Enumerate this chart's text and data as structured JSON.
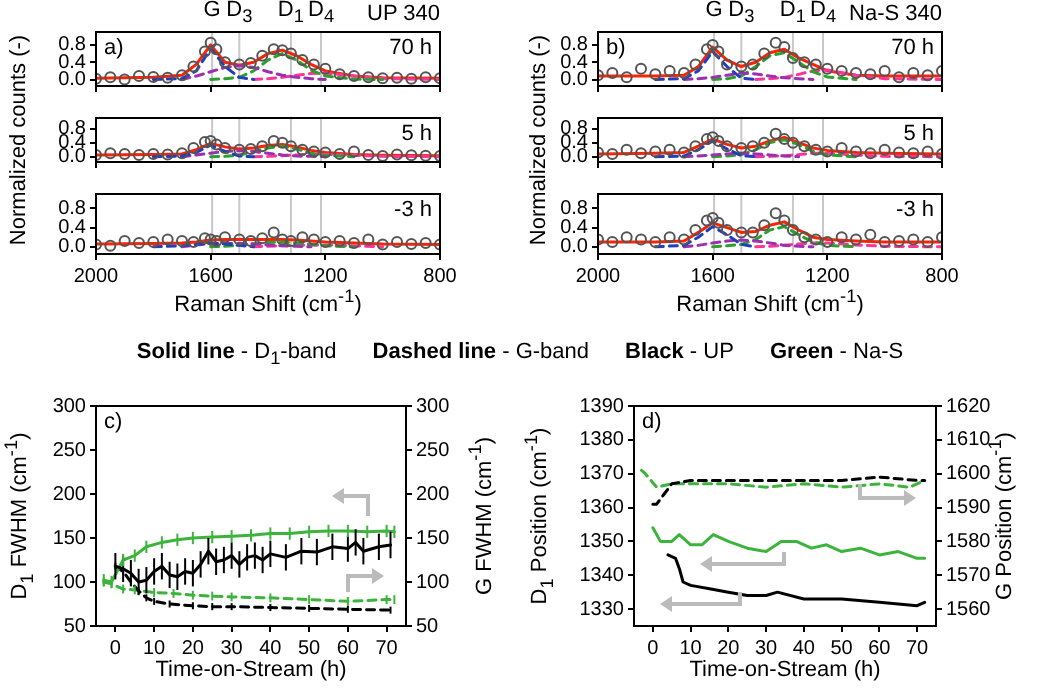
{
  "chart_data": [
    {
      "type": "line",
      "title": "UP 340",
      "annotations": [
        "a)",
        "70 h"
      ],
      "x": [
        2000,
        1800,
        1700,
        1650,
        1600,
        1550,
        1500,
        1450,
        1400,
        1350,
        1300,
        1250,
        1200,
        1100,
        1000,
        800
      ],
      "xlim": [
        2000,
        800
      ],
      "xticks": [
        2000,
        1600,
        1200,
        800
      ],
      "ylim": [
        -0.15,
        1.1
      ],
      "yticks": [
        {
          "value": 0,
          "label": "0.0"
        },
        {
          "value": 0.4,
          "label": "0.4"
        },
        {
          "value": 0.8,
          "label": "0.8"
        }
      ],
      "tick_labels": "y",
      "ref_lines": [
        {
          "axis": "x",
          "value": 1595,
          "label": "G",
          "color": "#c8c8c8"
        },
        {
          "axis": "x",
          "value": 1500,
          "label": "D$_{3}$",
          "color": "#c8c8c8"
        },
        {
          "axis": "x",
          "value": 1320,
          "label": "D$_{1}$",
          "color": "#c8c8c8"
        },
        {
          "axis": "x",
          "value": 1215,
          "label": "D$_{4}$",
          "color": "#c8c8c8"
        }
      ],
      "series": [
        {
          "type": "scatter",
          "color": "#555555",
          "marker": "circle",
          "x": [
            2000,
            1950,
            1900,
            1850,
            1800,
            1750,
            1700,
            1660,
            1620,
            1600,
            1580,
            1550,
            1500,
            1460,
            1420,
            1380,
            1350,
            1320,
            1280,
            1240,
            1200,
            1150,
            1100,
            1050,
            1000,
            950,
            900,
            850,
            800
          ],
          "values": [
            0.02,
            0.05,
            0.0,
            0.08,
            0.06,
            0.04,
            0.1,
            0.3,
            0.65,
            0.85,
            0.7,
            0.4,
            0.35,
            0.38,
            0.55,
            0.7,
            0.68,
            0.6,
            0.45,
            0.35,
            0.25,
            0.12,
            0.08,
            0.05,
            0.03,
            0.04,
            0.02,
            0.05,
            0.03
          ]
        },
        {
          "type": "line",
          "color": "#1f3fbf",
          "marker": "none",
          "line_style": "dashed",
          "values": [
            null,
            0,
            0.02,
            0.2,
            0.72,
            0.3,
            0.05,
            0,
            null,
            null,
            null,
            null,
            null,
            null,
            null,
            null
          ]
        },
        {
          "type": "line",
          "color": "#9b30b0",
          "marker": "none",
          "line_style": "dashed",
          "values": [
            null,
            null,
            0,
            0.08,
            0.18,
            0.28,
            0.32,
            0.28,
            0.18,
            0.1,
            0.05,
            0.02,
            0,
            null,
            null,
            null
          ]
        },
        {
          "type": "line",
          "color": "#2ca02c",
          "marker": "none",
          "line_style": "dashed",
          "values": [
            null,
            null,
            null,
            null,
            0,
            0.02,
            0.05,
            0.2,
            0.45,
            0.6,
            0.45,
            0.22,
            0.08,
            0.01,
            0,
            null
          ]
        },
        {
          "type": "line",
          "color": "#ff3399",
          "marker": "none",
          "line_style": "dashed",
          "values": [
            null,
            null,
            null,
            null,
            null,
            null,
            null,
            0,
            0.02,
            0.05,
            0.1,
            0.14,
            0.15,
            0.08,
            0.02,
            0
          ]
        },
        {
          "type": "line",
          "color": "#ff2200",
          "marker": "none",
          "line_style": "solid",
          "values": [
            0.03,
            0.05,
            0.1,
            0.35,
            0.8,
            0.4,
            0.33,
            0.4,
            0.6,
            0.68,
            0.55,
            0.35,
            0.2,
            0.08,
            0.04,
            0.03
          ]
        }
      ]
    },
    {
      "type": "line",
      "ylabel": "Normalized counts (-)",
      "annotations": [
        "5 h"
      ],
      "x": [
        2000,
        1800,
        1700,
        1650,
        1600,
        1550,
        1500,
        1450,
        1400,
        1350,
        1300,
        1250,
        1200,
        1100,
        1000,
        800
      ],
      "xlim": [
        2000,
        800
      ],
      "xticks": [
        2000,
        1600,
        1200,
        800
      ],
      "ylim": [
        -0.15,
        1.1
      ],
      "yticks": [
        {
          "value": 0,
          "label": "0.0"
        },
        {
          "value": 0.4,
          "label": "0.4"
        },
        {
          "value": 0.8,
          "label": "0.8"
        }
      ],
      "tick_labels": "y",
      "ref_lines": [
        {
          "axis": "x",
          "value": 1595,
          "label": null,
          "color": "#c8c8c8"
        },
        {
          "axis": "x",
          "value": 1500,
          "label": null,
          "color": "#c8c8c8"
        },
        {
          "axis": "x",
          "value": 1320,
          "label": null,
          "color": "#c8c8c8"
        },
        {
          "axis": "x",
          "value": 1215,
          "label": null,
          "color": "#c8c8c8"
        }
      ],
      "series": [
        {
          "type": "scatter",
          "color": "#555555",
          "marker": "circle",
          "x": [
            2000,
            1950,
            1900,
            1850,
            1800,
            1750,
            1700,
            1660,
            1620,
            1600,
            1580,
            1550,
            1500,
            1460,
            1420,
            1380,
            1350,
            1320,
            1280,
            1240,
            1200,
            1150,
            1100,
            1050,
            1000,
            950,
            900,
            850,
            800
          ],
          "values": [
            0.05,
            0.1,
            0.08,
            0.05,
            0.08,
            0.06,
            0.1,
            0.25,
            0.42,
            0.45,
            0.35,
            0.25,
            0.2,
            0.22,
            0.3,
            0.45,
            0.4,
            0.3,
            0.2,
            0.15,
            0.12,
            0.08,
            0.15,
            0.05,
            0.02,
            0.06,
            0.04,
            0.03,
            0.02
          ]
        },
        {
          "type": "line",
          "color": "#1f3fbf",
          "marker": "none",
          "line_style": "dashed",
          "values": [
            null,
            0,
            0.02,
            0.12,
            0.33,
            0.15,
            0.02,
            0,
            null,
            null,
            null,
            null,
            null,
            null,
            null,
            null
          ]
        },
        {
          "type": "line",
          "color": "#9b30b0",
          "marker": "none",
          "line_style": "dashed",
          "values": [
            null,
            null,
            0,
            0.05,
            0.1,
            0.15,
            0.17,
            0.15,
            0.1,
            0.05,
            0.02,
            0.01,
            0,
            null,
            null,
            null
          ]
        },
        {
          "type": "line",
          "color": "#2ca02c",
          "marker": "none",
          "line_style": "dashed",
          "values": [
            null,
            null,
            null,
            null,
            0,
            0.01,
            0.04,
            0.15,
            0.25,
            0.3,
            0.22,
            0.1,
            0.04,
            0,
            null,
            null
          ]
        },
        {
          "type": "line",
          "color": "#ff3399",
          "marker": "none",
          "line_style": "dashed",
          "values": [
            null,
            null,
            null,
            null,
            null,
            null,
            null,
            0,
            0.01,
            0.03,
            0.05,
            0.07,
            0.07,
            0.04,
            0.01,
            0
          ]
        },
        {
          "type": "line",
          "color": "#ff2200",
          "marker": "none",
          "line_style": "solid",
          "values": [
            0.05,
            0.06,
            0.08,
            0.2,
            0.38,
            0.28,
            0.22,
            0.25,
            0.32,
            0.35,
            0.28,
            0.18,
            0.12,
            0.06,
            0.04,
            0.03
          ]
        }
      ]
    },
    {
      "type": "line",
      "xlabel": "Raman Shift (cm$^{-1}$)",
      "annotations": [
        "-3 h"
      ],
      "x": [
        2000,
        1800,
        1700,
        1650,
        1600,
        1550,
        1500,
        1450,
        1400,
        1350,
        1300,
        1250,
        1200,
        1100,
        1000,
        800
      ],
      "xlim": [
        2000,
        800
      ],
      "xticks": [
        2000,
        1600,
        1200,
        800
      ],
      "ylim": [
        -0.15,
        1.1
      ],
      "yticks": [
        {
          "value": 0,
          "label": "0.0"
        },
        {
          "value": 0.4,
          "label": "0.4"
        },
        {
          "value": 0.8,
          "label": "0.8"
        }
      ],
      "ref_lines": [
        {
          "axis": "x",
          "value": 1595,
          "label": null,
          "color": "#c8c8c8"
        },
        {
          "axis": "x",
          "value": 1500,
          "label": null,
          "color": "#c8c8c8"
        },
        {
          "axis": "x",
          "value": 1320,
          "label": null,
          "color": "#c8c8c8"
        },
        {
          "axis": "x",
          "value": 1215,
          "label": null,
          "color": "#c8c8c8"
        }
      ],
      "series": [
        {
          "type": "scatter",
          "color": "#555555",
          "marker": "circle",
          "x": [
            2000,
            1950,
            1900,
            1850,
            1800,
            1750,
            1700,
            1660,
            1620,
            1600,
            1580,
            1550,
            1500,
            1460,
            1420,
            1380,
            1350,
            1320,
            1280,
            1240,
            1200,
            1150,
            1100,
            1050,
            1000,
            950,
            900,
            850,
            800
          ],
          "values": [
            0.05,
            0.02,
            0.12,
            0.08,
            0.1,
            0.15,
            0.12,
            0.1,
            0.18,
            0.15,
            0.12,
            0.2,
            0.15,
            0.12,
            0.18,
            0.3,
            0.15,
            0.12,
            0.2,
            0.15,
            0.1,
            0.12,
            0.08,
            0.15,
            0.05,
            0.1,
            0.06,
            0.08,
            0.05
          ]
        },
        {
          "type": "line",
          "color": "#1f3fbf",
          "marker": "none",
          "line_style": "dashed",
          "values": [
            null,
            0,
            0.02,
            0.05,
            0.08,
            0.06,
            0.03,
            0,
            null,
            null,
            null,
            null,
            null,
            null,
            null,
            null
          ]
        },
        {
          "type": "line",
          "color": "#9b30b0",
          "marker": "none",
          "line_style": "dashed",
          "values": [
            null,
            null,
            0,
            0.04,
            0.06,
            0.07,
            0.07,
            0.06,
            0.04,
            0.02,
            0.01,
            0,
            null,
            null,
            null,
            null
          ]
        },
        {
          "type": "line",
          "color": "#2ca02c",
          "marker": "none",
          "line_style": "dashed",
          "values": [
            null,
            null,
            null,
            null,
            0,
            0.01,
            0.03,
            0.06,
            0.09,
            0.1,
            0.08,
            0.05,
            0.02,
            0,
            null,
            null
          ]
        },
        {
          "type": "line",
          "color": "#ff3399",
          "marker": "none",
          "line_style": "dashed",
          "values": [
            null,
            null,
            null,
            null,
            null,
            null,
            null,
            0,
            0.01,
            0.02,
            0.03,
            0.04,
            0.04,
            0.02,
            0,
            null
          ]
        },
        {
          "type": "line",
          "color": "#ff2200",
          "marker": "none",
          "line_style": "solid",
          "values": [
            0.06,
            0.07,
            0.08,
            0.1,
            0.14,
            0.15,
            0.15,
            0.15,
            0.15,
            0.15,
            0.14,
            0.12,
            0.1,
            0.08,
            0.06,
            0.05
          ]
        }
      ]
    },
    {
      "type": "line",
      "title": "Na-S 340",
      "annotations": [
        "b)",
        "70 h"
      ],
      "x": [
        2000,
        1800,
        1700,
        1650,
        1600,
        1550,
        1500,
        1450,
        1400,
        1350,
        1300,
        1250,
        1200,
        1100,
        1000,
        800
      ],
      "xlim": [
        2000,
        800
      ],
      "xticks": [
        2000,
        1600,
        1200,
        800
      ],
      "ylim": [
        -0.15,
        1.1
      ],
      "yticks": [
        {
          "value": 0,
          "label": "0.0"
        },
        {
          "value": 0.4,
          "label": "0.4"
        },
        {
          "value": 0.8,
          "label": "0.8"
        }
      ],
      "tick_labels": "y",
      "ref_lines": [
        {
          "axis": "x",
          "value": 1595,
          "label": "G",
          "color": "#c8c8c8"
        },
        {
          "axis": "x",
          "value": 1500,
          "label": "D$_{3}$",
          "color": "#c8c8c8"
        },
        {
          "axis": "x",
          "value": 1320,
          "label": "D$_{1}$",
          "color": "#c8c8c8"
        },
        {
          "axis": "x",
          "value": 1215,
          "label": "D$_{4}$",
          "color": "#c8c8c8"
        }
      ],
      "series": [
        {
          "type": "scatter",
          "color": "#555555",
          "marker": "circle",
          "x": [
            2000,
            1950,
            1900,
            1850,
            1800,
            1750,
            1700,
            1660,
            1620,
            1600,
            1580,
            1550,
            1500,
            1460,
            1420,
            1380,
            1350,
            1320,
            1280,
            1240,
            1200,
            1150,
            1100,
            1050,
            1000,
            950,
            900,
            850,
            800
          ],
          "values": [
            0.1,
            0.15,
            0.05,
            0.25,
            0.12,
            0.2,
            0.15,
            0.35,
            0.7,
            0.8,
            0.65,
            0.35,
            0.3,
            0.35,
            0.6,
            0.85,
            0.75,
            0.5,
            0.4,
            0.35,
            0.25,
            0.2,
            0.15,
            0.12,
            0.2,
            0.05,
            0.15,
            0.1,
            0.2
          ]
        },
        {
          "type": "line",
          "color": "#1f3fbf",
          "marker": "none",
          "line_style": "dashed",
          "values": [
            null,
            0,
            0.02,
            0.2,
            0.65,
            0.3,
            0.03,
            0,
            null,
            null,
            null,
            null,
            null,
            null,
            null,
            null
          ]
        },
        {
          "type": "line",
          "color": "#9b30b0",
          "marker": "none",
          "line_style": "dashed",
          "values": [
            null,
            null,
            0,
            0.02,
            0.05,
            0.1,
            0.15,
            0.13,
            0.08,
            0.04,
            0.02,
            0,
            null,
            null,
            null,
            null
          ]
        },
        {
          "type": "line",
          "color": "#2ca02c",
          "marker": "none",
          "line_style": "dashed",
          "values": [
            null,
            null,
            null,
            null,
            0,
            0.02,
            0.08,
            0.3,
            0.55,
            0.62,
            0.4,
            0.18,
            0.06,
            0,
            null,
            null
          ]
        },
        {
          "type": "line",
          "color": "#ff3399",
          "marker": "none",
          "line_style": "dashed",
          "values": [
            null,
            null,
            null,
            null,
            null,
            null,
            null,
            0,
            0.02,
            0.05,
            0.12,
            0.2,
            0.22,
            0.1,
            0.02,
            0
          ]
        },
        {
          "type": "line",
          "color": "#ff2200",
          "marker": "none",
          "line_style": "solid",
          "values": [
            0.08,
            0.08,
            0.1,
            0.3,
            0.75,
            0.45,
            0.3,
            0.4,
            0.62,
            0.7,
            0.5,
            0.35,
            0.2,
            0.1,
            0.08,
            0.08
          ]
        }
      ]
    },
    {
      "type": "line",
      "ylabel": "Normalized counts (-)",
      "annotations": [
        "5 h"
      ],
      "x": [
        2000,
        1800,
        1700,
        1650,
        1600,
        1550,
        1500,
        1450,
        1400,
        1350,
        1300,
        1250,
        1200,
        1100,
        1000,
        800
      ],
      "xlim": [
        2000,
        800
      ],
      "xticks": [
        2000,
        1600,
        1200,
        800
      ],
      "ylim": [
        -0.15,
        1.1
      ],
      "yticks": [
        {
          "value": 0,
          "label": "0.0"
        },
        {
          "value": 0.4,
          "label": "0.4"
        },
        {
          "value": 0.8,
          "label": "0.8"
        }
      ],
      "tick_labels": "y",
      "ref_lines": [
        {
          "axis": "x",
          "value": 1595,
          "label": null,
          "color": "#c8c8c8"
        },
        {
          "axis": "x",
          "value": 1500,
          "label": null,
          "color": "#c8c8c8"
        },
        {
          "axis": "x",
          "value": 1320,
          "label": null,
          "color": "#c8c8c8"
        },
        {
          "axis": "x",
          "value": 1215,
          "label": null,
          "color": "#c8c8c8"
        }
      ],
      "series": [
        {
          "type": "scatter",
          "color": "#555555",
          "marker": "circle",
          "x": [
            2000,
            1950,
            1900,
            1850,
            1800,
            1750,
            1700,
            1660,
            1620,
            1600,
            1580,
            1550,
            1500,
            1460,
            1420,
            1380,
            1350,
            1320,
            1280,
            1240,
            1200,
            1150,
            1100,
            1050,
            1000,
            950,
            900,
            850,
            800
          ],
          "values": [
            0.12,
            0.08,
            0.2,
            0.1,
            0.15,
            0.2,
            0.12,
            0.3,
            0.5,
            0.55,
            0.45,
            0.3,
            0.25,
            0.3,
            0.4,
            0.65,
            0.5,
            0.4,
            0.3,
            0.2,
            0.15,
            0.25,
            0.15,
            0.1,
            0.2,
            0.12,
            0.1,
            0.15,
            0.08
          ]
        },
        {
          "type": "line",
          "color": "#1f3fbf",
          "marker": "none",
          "line_style": "dashed",
          "values": [
            null,
            0,
            0.02,
            0.2,
            0.45,
            0.22,
            0.03,
            0,
            null,
            null,
            null,
            null,
            null,
            null,
            null,
            null
          ]
        },
        {
          "type": "line",
          "color": "#9b30b0",
          "marker": "none",
          "line_style": "dashed",
          "values": [
            null,
            null,
            0,
            0.02,
            0.05,
            0.08,
            0.1,
            0.08,
            0.05,
            0.02,
            0,
            null,
            null,
            null,
            null,
            null
          ]
        },
        {
          "type": "line",
          "color": "#2ca02c",
          "marker": "none",
          "line_style": "dashed",
          "values": [
            null,
            null,
            null,
            null,
            0,
            0.02,
            0.06,
            0.2,
            0.4,
            0.48,
            0.35,
            0.15,
            0.05,
            0,
            null,
            null
          ]
        },
        {
          "type": "line",
          "color": "#ff3399",
          "marker": "none",
          "line_style": "dashed",
          "values": [
            null,
            null,
            null,
            null,
            null,
            null,
            null,
            0,
            0.01,
            0.03,
            0.06,
            0.1,
            0.1,
            0.05,
            0.01,
            0
          ]
        },
        {
          "type": "line",
          "color": "#ff2200",
          "marker": "none",
          "line_style": "solid",
          "values": [
            0.08,
            0.1,
            0.12,
            0.3,
            0.5,
            0.35,
            0.25,
            0.3,
            0.45,
            0.55,
            0.4,
            0.25,
            0.18,
            0.12,
            0.1,
            0.08
          ]
        }
      ]
    },
    {
      "type": "line",
      "xlabel": "Raman Shift (cm$^{-1}$)",
      "annotations": [
        "-3 h"
      ],
      "x": [
        2000,
        1800,
        1700,
        1650,
        1600,
        1550,
        1500,
        1450,
        1400,
        1350,
        1300,
        1250,
        1200,
        1100,
        1000,
        800
      ],
      "xlim": [
        2000,
        800
      ],
      "xticks": [
        2000,
        1600,
        1200,
        800
      ],
      "ylim": [
        -0.15,
        1.1
      ],
      "yticks": [
        {
          "value": 0,
          "label": "0.0"
        },
        {
          "value": 0.4,
          "label": "0.4"
        },
        {
          "value": 0.8,
          "label": "0.8"
        }
      ],
      "ref_lines": [
        {
          "axis": "x",
          "value": 1595,
          "label": null,
          "color": "#c8c8c8"
        },
        {
          "axis": "x",
          "value": 1500,
          "label": null,
          "color": "#c8c8c8"
        },
        {
          "axis": "x",
          "value": 1320,
          "label": null,
          "color": "#c8c8c8"
        },
        {
          "axis": "x",
          "value": 1215,
          "label": null,
          "color": "#c8c8c8"
        }
      ],
      "series": [
        {
          "type": "scatter",
          "color": "#555555",
          "marker": "circle",
          "x": [
            2000,
            1950,
            1900,
            1850,
            1800,
            1750,
            1700,
            1660,
            1620,
            1600,
            1580,
            1550,
            1500,
            1460,
            1420,
            1380,
            1350,
            1320,
            1280,
            1240,
            1200,
            1150,
            1100,
            1050,
            1000,
            950,
            900,
            850,
            800
          ],
          "values": [
            0.15,
            0.1,
            0.2,
            0.15,
            0.1,
            0.2,
            0.15,
            0.35,
            0.55,
            0.6,
            0.5,
            0.35,
            0.3,
            0.3,
            0.45,
            0.7,
            0.55,
            0.35,
            0.2,
            0.15,
            0.1,
            0.2,
            0.15,
            0.25,
            0.1,
            0.12,
            0.15,
            0.1,
            0.2
          ]
        },
        {
          "type": "line",
          "color": "#1f3fbf",
          "marker": "none",
          "line_style": "dashed",
          "values": [
            null,
            0,
            0.03,
            0.2,
            0.42,
            0.25,
            0.05,
            0,
            null,
            null,
            null,
            null,
            null,
            null,
            null,
            null
          ]
        },
        {
          "type": "line",
          "color": "#9b30b0",
          "marker": "none",
          "line_style": "dashed",
          "values": [
            null,
            null,
            0,
            0.03,
            0.08,
            0.12,
            0.14,
            0.12,
            0.08,
            0.03,
            0.01,
            0,
            null,
            null,
            null,
            null
          ]
        },
        {
          "type": "line",
          "color": "#2ca02c",
          "marker": "none",
          "line_style": "dashed",
          "values": [
            null,
            null,
            null,
            null,
            0,
            0.02,
            0.05,
            0.15,
            0.35,
            0.42,
            0.25,
            0.1,
            0.03,
            0,
            null,
            null
          ]
        },
        {
          "type": "line",
          "color": "#ff3399",
          "marker": "none",
          "line_style": "dashed",
          "values": [
            null,
            null,
            null,
            null,
            null,
            null,
            null,
            0,
            0.01,
            0.03,
            0.06,
            0.08,
            0.08,
            0.04,
            0.01,
            0
          ]
        },
        {
          "type": "line",
          "color": "#ff2200",
          "marker": "none",
          "line_style": "solid",
          "values": [
            0.1,
            0.1,
            0.12,
            0.3,
            0.5,
            0.4,
            0.3,
            0.32,
            0.45,
            0.52,
            0.35,
            0.2,
            0.15,
            0.12,
            0.1,
            0.1
          ]
        }
      ]
    },
    {
      "type": "other",
      "annotations": [
        "Solid line - D$_{1}$-band",
        "Dashed line - G-band",
        "Black - UP",
        "Green - Na-S"
      ]
    },
    {
      "type": "line",
      "annotations": [
        "c)"
      ],
      "xlabel": "Time-on-Stream (h)",
      "ylabel": "D$_{1}$ FWHM (cm$^{-1}$)",
      "y2label": "G FWHM (cm$^{-1}$)",
      "xlim": [
        -5,
        75
      ],
      "xticks": [
        0,
        10,
        20,
        30,
        40,
        50,
        60,
        70
      ],
      "ylim": [
        50,
        300
      ],
      "yticks": [
        50,
        100,
        150,
        200,
        250,
        300
      ],
      "y2lim": [
        50,
        300
      ],
      "y2ticks": [
        50,
        100,
        150,
        200,
        250,
        300
      ],
      "series": [
        {
          "type": "line",
          "color": "#000000",
          "marker": "none",
          "line_style": "solid",
          "x": [
            0,
            2,
            4,
            6,
            8,
            10,
            12,
            14,
            16,
            18,
            20,
            22,
            24,
            26,
            28,
            30,
            32,
            34,
            36,
            38,
            40,
            44,
            48,
            52,
            56,
            60,
            62,
            64,
            68,
            71
          ],
          "values": [
            118,
            115,
            110,
            100,
            102,
            112,
            118,
            108,
            106,
            112,
            110,
            120,
            135,
            123,
            125,
            130,
            120,
            128,
            130,
            125,
            132,
            128,
            135,
            134,
            140,
            138,
            145,
            135,
            140,
            142
          ],
          "errors": [
            15,
            15,
            15,
            15,
            15,
            15,
            15,
            15,
            15,
            15,
            15,
            15,
            15,
            15,
            15,
            15,
            15,
            15,
            15,
            15,
            15,
            15,
            15,
            15,
            15,
            15,
            15,
            15,
            15,
            15
          ]
        },
        {
          "type": "line",
          "color": "#3cb43c",
          "marker": "none",
          "line_style": "solid",
          "x": [
            -3,
            -1,
            2,
            5,
            8,
            12,
            16,
            20,
            25,
            30,
            35,
            40,
            45,
            50,
            55,
            60,
            65,
            70,
            72
          ],
          "values": [
            102,
            100,
            125,
            130,
            140,
            145,
            148,
            150,
            151,
            152,
            153,
            155,
            155,
            157,
            158,
            158,
            157,
            158,
            157
          ],
          "errors": [
            7,
            7,
            7,
            7,
            7,
            7,
            7,
            7,
            7,
            7,
            7,
            7,
            7,
            7,
            7,
            7,
            7,
            7,
            7
          ]
        },
        {
          "type": "line",
          "axis": "y2",
          "color": "#000000",
          "marker": "none",
          "line_style": "dashed",
          "x": [
            0,
            2,
            4,
            6,
            8,
            10,
            14,
            20,
            25,
            30,
            40,
            50,
            60,
            71
          ],
          "values": [
            118,
            112,
            100,
            90,
            82,
            78,
            75,
            73,
            72,
            72,
            71,
            70,
            69,
            68
          ],
          "errors": [
            4,
            4,
            4,
            4,
            4,
            4,
            4,
            4,
            4,
            4,
            4,
            4,
            4,
            4
          ]
        },
        {
          "type": "line",
          "axis": "y2",
          "color": "#3cb43c",
          "marker": "none",
          "line_style": "dashed",
          "x": [
            -3,
            -1,
            2,
            5,
            10,
            15,
            20,
            25,
            30,
            40,
            50,
            60,
            70,
            72
          ],
          "values": [
            100,
            98,
            92,
            91,
            88,
            87,
            85,
            84,
            83,
            82,
            80,
            78,
            80,
            80
          ],
          "errors": [
            5,
            5,
            5,
            5,
            5,
            5,
            5,
            5,
            5,
            5,
            5,
            5,
            5,
            5
          ]
        }
      ]
    },
    {
      "type": "line",
      "annotations": [
        "d)"
      ],
      "xlabel": "Time-on-Stream (h)",
      "ylabel": "D$_{1}$ Position (cm$^{-1}$)",
      "y2label": "G Position (cm$^{-1}$)",
      "xlim": [
        -5,
        75
      ],
      "xticks": [
        0,
        10,
        20,
        30,
        40,
        50,
        60,
        70
      ],
      "ylim": [
        1325,
        1390
      ],
      "yticks": [
        1330,
        1340,
        1350,
        1360,
        1370,
        1380,
        1390
      ],
      "y2lim": [
        1555,
        1620
      ],
      "y2ticks": [
        1560,
        1570,
        1580,
        1590,
        1600,
        1610,
        1620
      ],
      "series": [
        {
          "type": "line",
          "color": "#000000",
          "marker": "none",
          "line_style": "solid",
          "x": [
            4,
            6,
            7,
            8,
            10,
            15,
            20,
            25,
            30,
            33,
            40,
            45,
            50,
            60,
            70,
            72
          ],
          "values": [
            1346,
            1345,
            1342,
            1338,
            1337,
            1336,
            1335,
            1334,
            1334,
            1335,
            1333,
            1333,
            1333,
            1332,
            1331,
            1332
          ]
        },
        {
          "type": "line",
          "color": "#3cb43c",
          "marker": "none",
          "line_style": "solid",
          "x": [
            0,
            2,
            5,
            7,
            10,
            13,
            16,
            20,
            25,
            30,
            34,
            38,
            42,
            46,
            50,
            55,
            60,
            65,
            70,
            72
          ],
          "values": [
            1354,
            1350,
            1350,
            1352,
            1349,
            1349,
            1352,
            1350,
            1348,
            1347,
            1350,
            1350,
            1348,
            1349,
            1347,
            1348,
            1346,
            1347,
            1345,
            1345
          ]
        },
        {
          "type": "line",
          "axis": "y2",
          "color": "#000000",
          "marker": "none",
          "line_style": "dashed",
          "x": [
            0,
            1,
            3,
            5,
            10,
            20,
            30,
            40,
            50,
            60,
            70,
            72
          ],
          "values": [
            1591,
            1591,
            1594,
            1597,
            1598,
            1598,
            1598,
            1598,
            1598,
            1599,
            1598,
            1598
          ]
        },
        {
          "type": "line",
          "axis": "y2",
          "color": "#3cb43c",
          "marker": "none",
          "line_style": "dashed",
          "x": [
            -3,
            -2,
            1,
            5,
            10,
            20,
            30,
            40,
            50,
            60,
            68,
            72
          ],
          "values": [
            1601,
            1600,
            1596,
            1597,
            1597,
            1597,
            1596,
            1597,
            1596,
            1597,
            1596,
            1598
          ]
        }
      ]
    }
  ]
}
